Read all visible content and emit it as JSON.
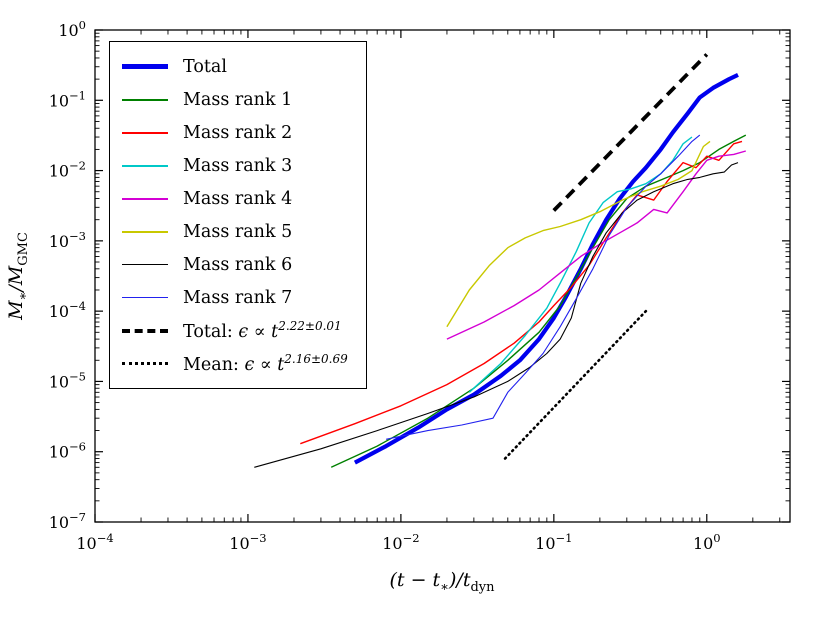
{
  "figure": {
    "xlabel": {
      "pre": "(t − t",
      "sub": "∗",
      "mid": ")/t",
      "sub2": "dyn"
    },
    "ylabel": {
      "pre": "M",
      "sub": "∗",
      "mid": "/M",
      "sub2": "GMC"
    }
  },
  "legend": {
    "entries": [
      {
        "label": "Total",
        "color": "#0000ee",
        "line": "solid",
        "px": 5
      },
      {
        "label": "Mass rank 1",
        "color": "#008000",
        "line": "solid",
        "px": 2
      },
      {
        "label": "Mass rank 2",
        "color": "#ff0000",
        "line": "solid",
        "px": 2
      },
      {
        "label": "Mass rank 3",
        "color": "#00c8c8",
        "line": "solid",
        "px": 2
      },
      {
        "label": "Mass rank 4",
        "color": "#d400d4",
        "line": "solid",
        "px": 2
      },
      {
        "label": "Mass rank 5",
        "color": "#c8c800",
        "line": "solid",
        "px": 2
      },
      {
        "label": "Mass rank 6",
        "color": "#000000",
        "line": "solid",
        "px": 1.5
      },
      {
        "label": "Mass rank 7",
        "color": "#2222ee",
        "line": "solid",
        "px": 1.5
      },
      {
        "prefix": "Total: ",
        "base": "ϵ ∝ t",
        "exponent": "2.22±0.01",
        "color": "#000000",
        "line": "dashed",
        "px": 4
      },
      {
        "prefix": "Mean: ",
        "base": "ϵ ∝ t",
        "exponent": "2.16±0.69",
        "color": "#000000",
        "line": "dotted",
        "px": 3
      }
    ]
  },
  "chart_data": {
    "type": "line",
    "title": "",
    "xlabel": "(t − t∗)/t_dyn",
    "ylabel": "M∗/M_GMC",
    "xscale": "log",
    "yscale": "log",
    "xlim": [
      0.0001,
      3.5
    ],
    "ylim": [
      1e-07,
      1
    ],
    "x_tick_exponents": [
      -4,
      -3,
      -2,
      -1,
      0
    ],
    "y_tick_exponents": [
      0,
      -1,
      -2,
      -3,
      -4,
      -5,
      -6,
      -7
    ],
    "grid": false,
    "legend_position": "upper left",
    "series": [
      {
        "id": "total",
        "name": "Total",
        "color": "#0000ee",
        "width": 4.2,
        "style": "solid",
        "points": [
          [
            0.005,
            7e-07
          ],
          [
            0.008,
            1.2e-06
          ],
          [
            0.013,
            2.2e-06
          ],
          [
            0.02,
            4e-06
          ],
          [
            0.03,
            6.5e-06
          ],
          [
            0.045,
            1.2e-05
          ],
          [
            0.06,
            2e-05
          ],
          [
            0.08,
            4e-05
          ],
          [
            0.1,
            8e-05
          ],
          [
            0.12,
            0.00016
          ],
          [
            0.15,
            0.0004
          ],
          [
            0.18,
            0.0009
          ],
          [
            0.22,
            0.002
          ],
          [
            0.27,
            0.004
          ],
          [
            0.33,
            0.007
          ],
          [
            0.4,
            0.011
          ],
          [
            0.5,
            0.02
          ],
          [
            0.6,
            0.035
          ],
          [
            0.75,
            0.065
          ],
          [
            0.9,
            0.11
          ],
          [
            1.1,
            0.15
          ],
          [
            1.4,
            0.2
          ],
          [
            1.6,
            0.23
          ]
        ]
      },
      {
        "id": "rank1",
        "name": "Mass rank 1",
        "color": "#008000",
        "width": 1.4,
        "style": "solid",
        "points": [
          [
            0.0035,
            6e-07
          ],
          [
            0.007,
            1.2e-06
          ],
          [
            0.015,
            3e-06
          ],
          [
            0.03,
            8e-06
          ],
          [
            0.05,
            2e-05
          ],
          [
            0.08,
            5e-05
          ],
          [
            0.11,
            0.00012
          ],
          [
            0.14,
            0.0003
          ],
          [
            0.18,
            0.0008
          ],
          [
            0.23,
            0.002
          ],
          [
            0.3,
            0.004
          ],
          [
            0.4,
            0.006
          ],
          [
            0.55,
            0.008
          ],
          [
            0.7,
            0.01
          ],
          [
            0.9,
            0.013
          ],
          [
            1.2,
            0.02
          ],
          [
            1.5,
            0.026
          ],
          [
            1.8,
            0.032
          ]
        ]
      },
      {
        "id": "rank2",
        "name": "Mass rank 2",
        "color": "#ff0000",
        "width": 1.4,
        "style": "solid",
        "points": [
          [
            0.0022,
            1.3e-06
          ],
          [
            0.005,
            2.5e-06
          ],
          [
            0.01,
            4.5e-06
          ],
          [
            0.02,
            9e-06
          ],
          [
            0.035,
            1.8e-05
          ],
          [
            0.055,
            3.5e-05
          ],
          [
            0.08,
            7e-05
          ],
          [
            0.1,
            0.00012
          ],
          [
            0.13,
            0.00022
          ],
          [
            0.17,
            0.00045
          ],
          [
            0.22,
            0.0011
          ],
          [
            0.28,
            0.0025
          ],
          [
            0.35,
            0.0045
          ],
          [
            0.45,
            0.0038
          ],
          [
            0.55,
            0.007
          ],
          [
            0.7,
            0.013
          ],
          [
            0.85,
            0.011
          ],
          [
            1.0,
            0.016
          ],
          [
            1.2,
            0.014
          ],
          [
            1.5,
            0.024
          ],
          [
            1.7,
            0.026
          ]
        ]
      },
      {
        "id": "rank3",
        "name": "Mass rank 3",
        "color": "#00c8c8",
        "width": 1.4,
        "style": "solid",
        "points": [
          [
            0.028,
            7e-06
          ],
          [
            0.045,
            1.8e-05
          ],
          [
            0.065,
            4.5e-05
          ],
          [
            0.09,
            0.00011
          ],
          [
            0.11,
            0.00025
          ],
          [
            0.14,
            0.0007
          ],
          [
            0.17,
            0.0018
          ],
          [
            0.21,
            0.0035
          ],
          [
            0.26,
            0.005
          ],
          [
            0.32,
            0.0055
          ],
          [
            0.4,
            0.0065
          ],
          [
            0.5,
            0.009
          ],
          [
            0.6,
            0.014
          ],
          [
            0.7,
            0.024
          ],
          [
            0.8,
            0.03
          ]
        ]
      },
      {
        "id": "rank4",
        "name": "Mass rank 4",
        "color": "#d400d4",
        "width": 1.4,
        "style": "solid",
        "points": [
          [
            0.02,
            4e-05
          ],
          [
            0.035,
            7e-05
          ],
          [
            0.055,
            0.00012
          ],
          [
            0.08,
            0.0002
          ],
          [
            0.11,
            0.00035
          ],
          [
            0.15,
            0.0006
          ],
          [
            0.2,
            0.0009
          ],
          [
            0.27,
            0.0013
          ],
          [
            0.35,
            0.0018
          ],
          [
            0.45,
            0.0028
          ],
          [
            0.55,
            0.0025
          ],
          [
            0.7,
            0.005
          ],
          [
            0.85,
            0.009
          ],
          [
            1.0,
            0.014
          ],
          [
            1.2,
            0.016
          ],
          [
            1.5,
            0.017
          ],
          [
            1.8,
            0.019
          ]
        ]
      },
      {
        "id": "rank5",
        "name": "Mass rank 5",
        "color": "#c8c800",
        "width": 1.4,
        "style": "solid",
        "points": [
          [
            0.02,
            6e-05
          ],
          [
            0.028,
            0.0002
          ],
          [
            0.038,
            0.00045
          ],
          [
            0.05,
            0.0008
          ],
          [
            0.065,
            0.0011
          ],
          [
            0.085,
            0.0014
          ],
          [
            0.11,
            0.0016
          ],
          [
            0.15,
            0.002
          ],
          [
            0.2,
            0.0026
          ],
          [
            0.28,
            0.0038
          ],
          [
            0.38,
            0.005
          ],
          [
            0.5,
            0.006
          ],
          [
            0.65,
            0.0075
          ],
          [
            0.8,
            0.01
          ],
          [
            0.95,
            0.022
          ],
          [
            1.05,
            0.026
          ]
        ]
      },
      {
        "id": "rank6",
        "name": "Mass rank 6",
        "color": "#000000",
        "width": 1.1,
        "style": "solid",
        "points": [
          [
            0.0011,
            6e-07
          ],
          [
            0.003,
            1.1e-06
          ],
          [
            0.007,
            2e-06
          ],
          [
            0.015,
            3.5e-06
          ],
          [
            0.03,
            6e-06
          ],
          [
            0.05,
            1e-05
          ],
          [
            0.07,
            1.6e-05
          ],
          [
            0.09,
            2.5e-05
          ],
          [
            0.11,
            4e-05
          ],
          [
            0.13,
            8e-05
          ],
          [
            0.15,
            0.00025
          ],
          [
            0.18,
            0.0006
          ],
          [
            0.22,
            0.0013
          ],
          [
            0.28,
            0.0025
          ],
          [
            0.35,
            0.0038
          ],
          [
            0.45,
            0.005
          ],
          [
            0.6,
            0.0065
          ],
          [
            0.75,
            0.0075
          ],
          [
            0.9,
            0.008
          ],
          [
            1.1,
            0.009
          ],
          [
            1.3,
            0.0095
          ],
          [
            1.45,
            0.012
          ],
          [
            1.6,
            0.013
          ]
        ]
      },
      {
        "id": "rank7",
        "name": "Mass rank 7",
        "color": "#2222ee",
        "width": 1.1,
        "style": "solid",
        "points": [
          [
            0.008,
            1.5e-06
          ],
          [
            0.015,
            2e-06
          ],
          [
            0.025,
            2.4e-06
          ],
          [
            0.04,
            3e-06
          ],
          [
            0.05,
            7e-06
          ],
          [
            0.065,
            1.3e-05
          ],
          [
            0.085,
            2.5e-05
          ],
          [
            0.11,
            6e-05
          ],
          [
            0.14,
            0.00015
          ],
          [
            0.18,
            0.0004
          ],
          [
            0.23,
            0.0012
          ],
          [
            0.3,
            0.003
          ],
          [
            0.4,
            0.006
          ],
          [
            0.5,
            0.009
          ],
          [
            0.65,
            0.016
          ],
          [
            0.8,
            0.026
          ],
          [
            0.9,
            0.032
          ]
        ]
      },
      {
        "id": "total-fit",
        "name": "Total fit ϵ ∝ t^2.22±0.01",
        "color": "#000000",
        "width": 3.8,
        "style": "dashed",
        "points": [
          [
            0.1,
            0.0027
          ],
          [
            1.0,
            0.45
          ]
        ]
      },
      {
        "id": "mean-fit",
        "name": "Mean fit ϵ ∝ t^2.16±0.69",
        "color": "#000000",
        "width": 2.6,
        "style": "dotted",
        "points": [
          [
            0.048,
            8e-07
          ],
          [
            0.4,
            0.0001
          ]
        ]
      }
    ]
  }
}
